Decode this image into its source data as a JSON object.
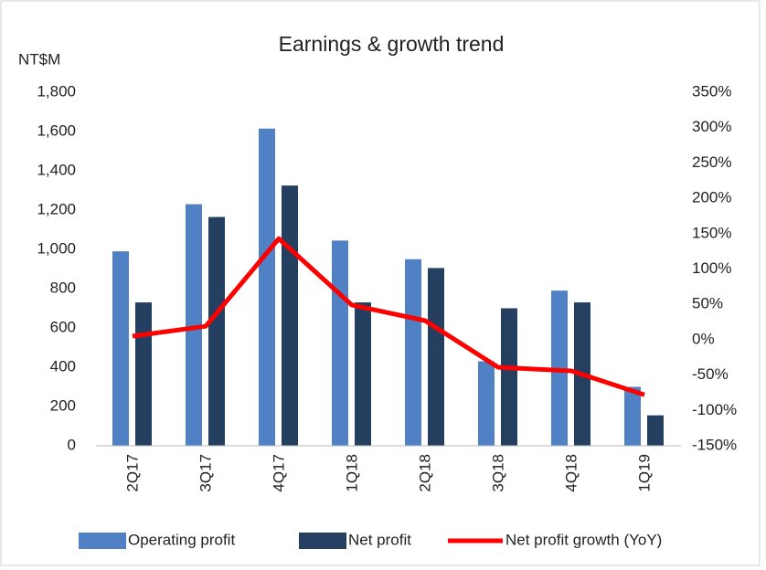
{
  "chart_data": {
    "type": "bar",
    "title": "Earnings & growth trend",
    "y_label": "NT$M",
    "categories": [
      "2Q17",
      "3Q17",
      "4Q17",
      "1Q18",
      "2Q18",
      "3Q18",
      "4Q18",
      "1Q19"
    ],
    "series": [
      {
        "name": "Operating profit",
        "type": "bar",
        "color": "#4f81c4",
        "values": [
          990,
          1230,
          1615,
          1045,
          950,
          430,
          790,
          300
        ]
      },
      {
        "name": "Net profit",
        "type": "bar",
        "color": "#253f60",
        "values": [
          730,
          1165,
          1325,
          730,
          905,
          700,
          730,
          155
        ]
      },
      {
        "name": "Net profit growth (YoY)",
        "type": "line",
        "axis": "y2",
        "color": "#ff0000",
        "values": [
          5,
          19,
          143,
          49,
          27,
          -39,
          -44,
          -78
        ]
      }
    ],
    "ylim": [
      0,
      1800
    ],
    "yticks": [
      0,
      200,
      400,
      600,
      800,
      {
        "value": 1000,
        "label": "1,000"
      },
      {
        "value": 1200,
        "label": "1,200"
      },
      {
        "value": 1400,
        "label": "1,400"
      },
      {
        "value": 1600,
        "label": "1,600"
      },
      {
        "value": 1800,
        "label": "1,800"
      }
    ],
    "y2lim": [
      -150,
      350
    ],
    "y2ticks": [
      {
        "value": -150,
        "label": "-150%"
      },
      {
        "value": -100,
        "label": "-100%"
      },
      {
        "value": -50,
        "label": "-50%"
      },
      {
        "value": 0,
        "label": "0%"
      },
      {
        "value": 50,
        "label": "50%"
      },
      {
        "value": 100,
        "label": "100%"
      },
      {
        "value": 150,
        "label": "150%"
      },
      {
        "value": 200,
        "label": "200%"
      },
      {
        "value": 250,
        "label": "250%"
      },
      {
        "value": 300,
        "label": "300%"
      },
      {
        "value": 350,
        "label": "350%"
      }
    ],
    "grid": false,
    "legend": "bottom"
  }
}
